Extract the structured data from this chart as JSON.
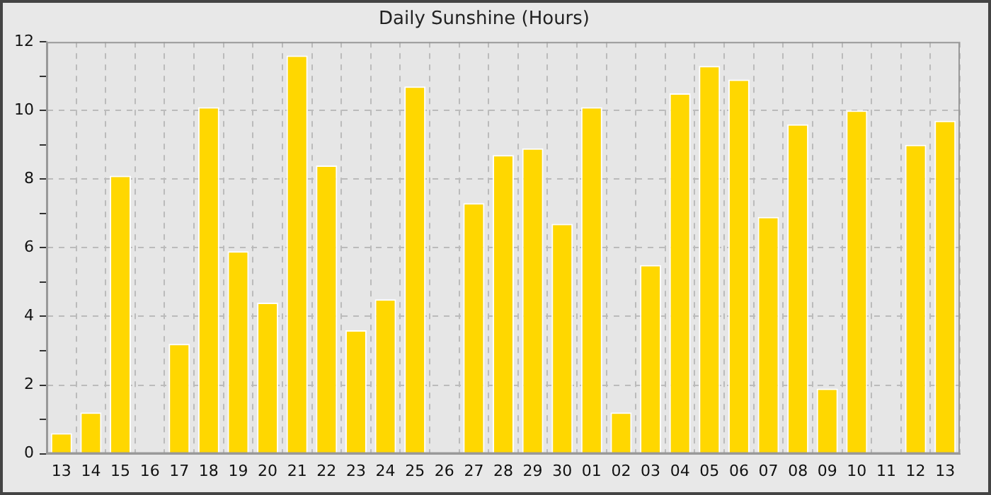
{
  "chart_data": {
    "type": "bar",
    "title": "Daily Sunshine (Hours)",
    "categories": [
      "13",
      "14",
      "15",
      "16",
      "17",
      "18",
      "19",
      "20",
      "21",
      "22",
      "23",
      "24",
      "25",
      "26",
      "27",
      "28",
      "29",
      "30",
      "01",
      "02",
      "03",
      "04",
      "05",
      "06",
      "07",
      "08",
      "09",
      "10",
      "11",
      "12",
      "13"
    ],
    "values": [
      0.6,
      1.2,
      8.1,
      0,
      3.2,
      10.1,
      5.9,
      4.4,
      11.6,
      8.4,
      3.6,
      4.5,
      10.7,
      0,
      7.3,
      8.7,
      8.9,
      6.7,
      10.1,
      1.2,
      5.5,
      10.5,
      11.3,
      10.9,
      6.9,
      9.6,
      1.9,
      10.0,
      0,
      9.0,
      9.7
    ],
    "color": "#ffd700",
    "ylim": [
      0,
      12
    ],
    "yticks": [
      0,
      {
        "value": 1,
        "label": null
      },
      2,
      {
        "value": 3,
        "label": null
      },
      4,
      {
        "value": 5,
        "label": null
      },
      6,
      {
        "value": 7,
        "label": null
      },
      8,
      {
        "value": 9,
        "label": null
      },
      10,
      {
        "value": 11,
        "label": null
      },
      12
    ],
    "grid": true
  }
}
